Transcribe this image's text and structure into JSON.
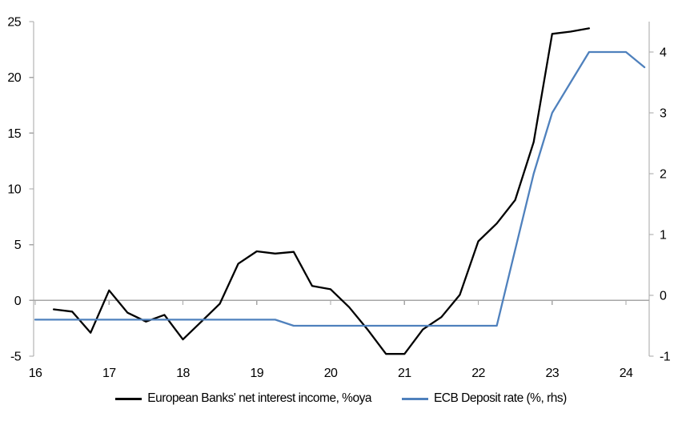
{
  "chart_data": {
    "type": "line",
    "title": "",
    "grid": "off",
    "legend_position": "bottom",
    "background_color": "#ffffff",
    "axis_color": "#a6a6a6",
    "text_color": "#000000",
    "x_axis": {
      "min": 16,
      "max": 24.45,
      "ticks": [
        16,
        17,
        18,
        19,
        20,
        21,
        22,
        23,
        24
      ],
      "note": "years 2016-2024, quarterly data, x-axis line drawn at left-axis zero"
    },
    "left_axis": {
      "min": -5,
      "max": 25,
      "ticks": [
        25,
        20,
        15,
        10,
        5,
        0,
        -5
      ]
    },
    "right_axis": {
      "min": -1,
      "max": 4.5,
      "ticks": [
        4,
        3,
        2,
        1,
        0,
        -1
      ]
    },
    "series": [
      {
        "name": "European Banks' net interest income, %oya",
        "axis": "left",
        "color": "#000000",
        "x": [
          16.25,
          16.5,
          16.75,
          17.0,
          17.25,
          17.5,
          17.75,
          18.0,
          18.25,
          18.5,
          18.75,
          19.0,
          19.25,
          19.5,
          19.75,
          20.0,
          20.25,
          20.5,
          20.75,
          21.0,
          21.25,
          21.5,
          21.75,
          22.0,
          22.25,
          22.5,
          22.75,
          23.0,
          23.25,
          23.5
        ],
        "values": [
          -0.8,
          -1.0,
          -2.9,
          0.9,
          -1.1,
          -1.9,
          -1.3,
          -3.5,
          -1.9,
          -0.3,
          3.3,
          4.4,
          4.2,
          4.35,
          1.3,
          1.0,
          -0.6,
          -2.6,
          -4.8,
          -4.8,
          -2.6,
          -1.5,
          0.5,
          5.3,
          6.9,
          9.0,
          14.2,
          23.9,
          24.1,
          24.4
        ]
      },
      {
        "name": "ECB Deposit rate (%, rhs)",
        "axis": "right",
        "color": "#4f81bd",
        "x": [
          16.0,
          16.25,
          16.5,
          16.75,
          17.0,
          17.25,
          17.5,
          17.75,
          18.0,
          18.25,
          18.5,
          18.75,
          19.0,
          19.25,
          19.5,
          19.75,
          20.0,
          20.25,
          20.5,
          20.75,
          21.0,
          21.25,
          21.5,
          21.75,
          22.0,
          22.25,
          22.5,
          22.75,
          23.0,
          23.25,
          23.5,
          23.75,
          24.0,
          24.25
        ],
        "values": [
          -0.4,
          -0.4,
          -0.4,
          -0.4,
          -0.4,
          -0.4,
          -0.4,
          -0.4,
          -0.4,
          -0.4,
          -0.4,
          -0.4,
          -0.4,
          -0.4,
          -0.5,
          -0.5,
          -0.5,
          -0.5,
          -0.5,
          -0.5,
          -0.5,
          -0.5,
          -0.5,
          -0.5,
          -0.5,
          -0.5,
          0.75,
          2.0,
          3.0,
          3.5,
          4.0,
          4.0,
          4.0,
          3.75
        ]
      }
    ]
  }
}
